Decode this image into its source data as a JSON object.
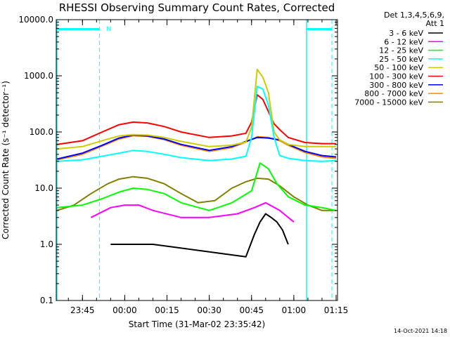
{
  "chart_data": {
    "type": "line",
    "title": "RHESSI Observing Summary Count Rates, Corrected",
    "xlabel": "Start Time (31-Mar-02 23:35:42)",
    "ylabel": "Corrected Count Rate (s⁻¹ detector⁻¹)",
    "xlim": [
      "23:35:42",
      "01:15:30"
    ],
    "ylim": [
      0.1,
      10000.0
    ],
    "y_scale": "log",
    "x_ticks": [
      "23:45",
      "00:00",
      "00:15",
      "00:30",
      "00:45",
      "01:00",
      "01:15"
    ],
    "y_ticks": [
      "0.1",
      "1.0",
      "10.0",
      "100.0",
      "1000.0",
      "10000.0"
    ],
    "legend_header": [
      "Det 1,3,4,5,6,9,",
      "Att 1"
    ],
    "legend_position": "right",
    "flag_label": "N",
    "markers": {
      "cyan_vertical_lines": [
        "23:35:42",
        "01:04:30"
      ],
      "cyan_dashed_lines": [
        "23:51:00",
        "01:13:30"
      ],
      "flag_bars": [
        [
          "23:35:42",
          "23:51:00"
        ],
        [
          "01:04:30",
          "01:13:30"
        ]
      ]
    },
    "series": [
      {
        "name": "3 - 6 keV",
        "color": "#000000",
        "x": [
          "23:55",
          "00:10",
          "00:43",
          "00:46",
          "00:48",
          "00:50",
          "00:52",
          "00:54",
          "00:56",
          "00:58"
        ],
        "y": [
          1.0,
          1.0,
          0.6,
          1.5,
          2.5,
          3.5,
          3.0,
          2.5,
          1.8,
          1.0
        ]
      },
      {
        "name": "6 - 12 keV",
        "color": "#ff00ff",
        "x": [
          "23:48",
          "23:55",
          "00:00",
          "00:05",
          "00:10",
          "00:20",
          "00:30",
          "00:40",
          "00:46",
          "00:50",
          "00:55",
          "01:00"
        ],
        "y": [
          3.0,
          4.5,
          5.0,
          5.0,
          4.0,
          3.0,
          3.0,
          3.5,
          4.5,
          5.5,
          4.0,
          2.5
        ]
      },
      {
        "name": "12 - 25 keV",
        "color": "#00ff00",
        "x": [
          "23:36",
          "23:45",
          "23:52",
          "23:58",
          "00:03",
          "00:08",
          "00:14",
          "00:20",
          "00:30",
          "00:38",
          "00:45",
          "00:48",
          "00:51",
          "00:54",
          "00:58",
          "01:04",
          "01:10",
          "01:15"
        ],
        "y": [
          4.5,
          5.0,
          6.5,
          8.5,
          10.0,
          9.5,
          8.0,
          5.5,
          4.0,
          5.5,
          9.0,
          28.0,
          22.0,
          12.0,
          7.0,
          5.0,
          4.5,
          4.0
        ]
      },
      {
        "name": "25 - 50 keV",
        "color": "#00ffff",
        "x": [
          "23:36",
          "23:45",
          "23:52",
          "23:58",
          "00:03",
          "00:08",
          "00:14",
          "00:20",
          "00:30",
          "00:38",
          "00:43",
          "00:45",
          "00:47",
          "00:49",
          "00:51",
          "00:53",
          "00:55",
          "00:58",
          "01:04",
          "01:10",
          "01:15"
        ],
        "y": [
          30,
          32,
          37,
          42,
          47,
          45,
          40,
          35,
          31,
          33,
          37,
          80,
          650,
          580,
          300,
          80,
          38,
          34,
          31,
          30,
          31
        ]
      },
      {
        "name": "50 - 100 keV",
        "color": "#cccc00",
        "x": [
          "23:36",
          "23:45",
          "23:52",
          "23:58",
          "00:03",
          "00:08",
          "00:14",
          "00:20",
          "00:30",
          "00:38",
          "00:43",
          "00:45",
          "00:47",
          "00:49",
          "00:51",
          "00:53",
          "00:55",
          "00:58",
          "01:04",
          "01:10",
          "01:15"
        ],
        "y": [
          50,
          55,
          70,
          85,
          90,
          88,
          80,
          68,
          55,
          58,
          66,
          120,
          1300,
          950,
          500,
          100,
          72,
          60,
          55,
          55,
          55
        ]
      },
      {
        "name": "100 - 300 keV",
        "color": "#ff0000",
        "x": [
          "23:36",
          "23:45",
          "23:52",
          "23:58",
          "00:03",
          "00:08",
          "00:14",
          "00:20",
          "00:30",
          "00:38",
          "00:43",
          "00:45",
          "00:47",
          "00:49",
          "00:51",
          "00:53",
          "00:55",
          "00:58",
          "01:04",
          "01:10",
          "01:15"
        ],
        "y": [
          60,
          70,
          100,
          135,
          150,
          145,
          125,
          100,
          80,
          85,
          95,
          150,
          460,
          380,
          230,
          140,
          110,
          80,
          65,
          62,
          62
        ]
      },
      {
        "name": "300 - 800 keV",
        "color": "#0000ff",
        "x": [
          "23:36",
          "23:45",
          "23:52",
          "23:58",
          "00:03",
          "00:08",
          "00:14",
          "00:20",
          "00:30",
          "00:38",
          "00:43",
          "00:47",
          "00:51",
          "00:55",
          "00:58",
          "01:04",
          "01:10",
          "01:15"
        ],
        "y": [
          33,
          42,
          58,
          78,
          88,
          85,
          75,
          60,
          47,
          55,
          68,
          80,
          78,
          72,
          60,
          45,
          38,
          36
        ]
      },
      {
        "name": "800 - 7000 keV",
        "color": "#ff8800",
        "x": [
          "23:36",
          "23:45",
          "23:52",
          "23:58",
          "00:03",
          "00:08",
          "00:14",
          "00:20",
          "00:30",
          "00:38",
          "00:43",
          "00:47",
          "00:51",
          "00:55",
          "00:58",
          "01:04",
          "01:10",
          "01:15"
        ],
        "y": [
          32,
          40,
          56,
          75,
          86,
          84,
          73,
          58,
          45,
          53,
          66,
          82,
          80,
          70,
          58,
          43,
          36,
          34
        ]
      },
      {
        "name": "7000 - 15000 keV",
        "color": "#808000",
        "x": [
          "23:36",
          "23:42",
          "23:48",
          "23:54",
          "23:58",
          "00:03",
          "00:08",
          "00:14",
          "00:20",
          "00:26",
          "00:32",
          "00:38",
          "00:43",
          "00:47",
          "00:51",
          "00:55",
          "01:00",
          "01:05",
          "01:10",
          "01:15"
        ],
        "y": [
          4.0,
          5.0,
          8.0,
          12.0,
          14.5,
          16.0,
          15.0,
          12.0,
          8.0,
          5.5,
          6.0,
          10.0,
          13.0,
          15.0,
          14.5,
          11.0,
          7.0,
          5.0,
          4.0,
          4.0
        ]
      }
    ]
  },
  "timestamp": "14-Oct-2021 14:18"
}
